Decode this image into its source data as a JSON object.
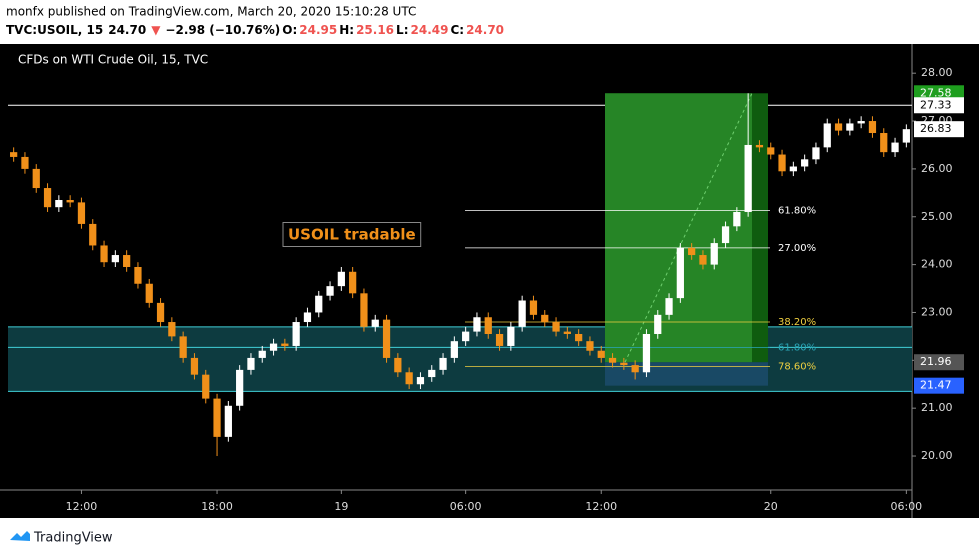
{
  "header": {
    "line1": "monfx published on TradingView.com, March 20, 2020 15:10:28 UTC",
    "line2": [
      {
        "text": "TVC:USOIL, 15",
        "color": "#000000"
      },
      {
        "text": "24.70",
        "color": "#000000"
      },
      {
        "text": "▼",
        "color": "#ef5350"
      },
      {
        "text": "−2.98 (−10.76%)",
        "color": "#000000"
      },
      {
        "text": "O:",
        "color": "#000000"
      },
      {
        "text": "24.95",
        "color": "#ef5350"
      },
      {
        "text": "H:",
        "color": "#000000"
      },
      {
        "text": "25.16",
        "color": "#ef5350"
      },
      {
        "text": "L:",
        "color": "#000000"
      },
      {
        "text": "24.49",
        "color": "#ef5350"
      },
      {
        "text": "C:",
        "color": "#000000"
      },
      {
        "text": "24.70",
        "color": "#ef5350"
      }
    ]
  },
  "footer": {
    "brand": "TradingView"
  },
  "chart_data": {
    "type": "candlestick",
    "title": "CFDs on WTI Crude Oil, 15, TVC",
    "annotation": "USOIL tradable",
    "up_color": "#ffffff",
    "down_color": "#f0901a",
    "categories": [
      null,
      null,
      null,
      null,
      null,
      null,
      "12:00",
      null,
      null,
      null,
      null,
      null,
      null,
      null,
      null,
      null,
      null,
      null,
      "18:00",
      null,
      null,
      null,
      null,
      null,
      null,
      null,
      null,
      null,
      null,
      "19",
      null,
      null,
      null,
      null,
      null,
      null,
      null,
      null,
      null,
      null,
      "06:00",
      null,
      null,
      null,
      null,
      null,
      null,
      null,
      null,
      null,
      null,
      null,
      "12:00",
      null,
      null,
      null,
      null,
      null,
      null,
      null,
      null,
      null,
      null,
      null,
      null,
      null,
      null,
      "20",
      null,
      null,
      null,
      null,
      null,
      null,
      null,
      null,
      null,
      null,
      null,
      "06:00"
    ],
    "open": [
      26.35,
      26.25,
      26.0,
      25.6,
      25.2,
      25.35,
      25.3,
      24.85,
      24.4,
      24.05,
      24.2,
      23.95,
      23.6,
      23.2,
      22.8,
      22.5,
      22.05,
      21.7,
      21.2,
      20.4,
      21.05,
      21.8,
      22.05,
      22.2,
      22.35,
      22.3,
      22.8,
      23.0,
      23.35,
      23.55,
      23.85,
      23.4,
      22.7,
      22.85,
      22.05,
      21.75,
      21.5,
      21.65,
      21.8,
      22.05,
      22.4,
      22.6,
      22.9,
      22.55,
      22.3,
      22.7,
      23.25,
      22.95,
      22.8,
      22.6,
      22.55,
      22.4,
      22.2,
      22.05,
      21.95,
      21.9,
      21.75,
      22.55,
      22.95,
      23.3,
      24.35,
      24.2,
      24.0,
      24.45,
      24.8,
      25.1,
      26.5,
      26.45,
      26.3,
      25.95,
      26.05,
      26.2,
      26.45,
      26.95,
      26.8,
      26.95,
      27.0,
      26.75,
      26.35,
      26.55
    ],
    "high": [
      26.45,
      26.35,
      26.1,
      25.7,
      25.45,
      25.45,
      25.4,
      24.95,
      24.5,
      24.3,
      24.3,
      24.05,
      23.7,
      23.3,
      22.9,
      22.6,
      22.15,
      21.8,
      21.3,
      21.15,
      21.9,
      22.15,
      22.3,
      22.45,
      22.45,
      22.9,
      23.1,
      23.45,
      23.65,
      23.95,
      23.95,
      23.5,
      22.95,
      22.95,
      22.15,
      21.85,
      21.75,
      21.9,
      22.15,
      22.5,
      22.7,
      23.0,
      23.0,
      22.65,
      22.8,
      23.35,
      23.35,
      23.05,
      22.9,
      22.7,
      22.65,
      22.5,
      22.3,
      22.15,
      22.05,
      22.0,
      22.65,
      23.05,
      23.4,
      24.45,
      24.45,
      24.3,
      24.55,
      24.9,
      25.2,
      27.58,
      26.6,
      26.55,
      26.4,
      26.15,
      26.3,
      26.55,
      27.05,
      27.05,
      27.05,
      27.1,
      27.1,
      26.85,
      26.65,
      26.93
    ],
    "low": [
      26.15,
      25.9,
      25.5,
      25.1,
      25.1,
      25.2,
      24.75,
      24.3,
      23.95,
      23.95,
      23.85,
      23.5,
      23.1,
      22.7,
      22.4,
      21.95,
      21.6,
      21.1,
      20.0,
      20.3,
      20.95,
      21.7,
      21.95,
      22.1,
      22.2,
      22.2,
      22.7,
      22.9,
      23.25,
      23.45,
      23.3,
      22.6,
      22.6,
      21.95,
      21.65,
      21.4,
      21.4,
      21.55,
      21.7,
      21.95,
      22.3,
      22.5,
      22.45,
      22.2,
      22.2,
      22.6,
      22.85,
      22.7,
      22.5,
      22.45,
      22.3,
      22.1,
      21.95,
      21.85,
      21.8,
      21.6,
      21.65,
      22.45,
      22.85,
      23.2,
      24.1,
      23.9,
      23.9,
      24.35,
      24.7,
      25.0,
      26.35,
      26.2,
      25.85,
      25.85,
      25.95,
      26.1,
      26.35,
      26.7,
      26.7,
      26.85,
      26.65,
      26.25,
      26.25,
      26.45
    ],
    "close": [
      26.25,
      26.0,
      25.6,
      25.2,
      25.35,
      25.3,
      24.85,
      24.4,
      24.05,
      24.2,
      23.95,
      23.6,
      23.2,
      22.8,
      22.5,
      22.05,
      21.7,
      21.2,
      20.4,
      21.05,
      21.8,
      22.05,
      22.2,
      22.35,
      22.3,
      22.8,
      23.0,
      23.35,
      23.55,
      23.85,
      23.4,
      22.7,
      22.85,
      22.05,
      21.75,
      21.5,
      21.65,
      21.8,
      22.05,
      22.4,
      22.6,
      22.9,
      22.55,
      22.3,
      22.7,
      23.25,
      22.95,
      22.8,
      22.6,
      22.55,
      22.4,
      22.2,
      22.05,
      21.95,
      21.9,
      21.75,
      22.55,
      22.95,
      23.3,
      24.35,
      24.2,
      24.0,
      24.45,
      24.8,
      25.1,
      26.5,
      26.45,
      26.3,
      25.95,
      26.05,
      26.2,
      26.45,
      26.95,
      26.8,
      26.95,
      27.0,
      26.75,
      26.35,
      26.55,
      26.83
    ],
    "ylim": [
      19.29,
      28.61
    ],
    "yticks": [
      {
        "value": 20,
        "label": "20.00"
      },
      {
        "value": 21,
        "label": "21.00"
      },
      {
        "value": 22,
        "label": "22.00"
      },
      {
        "value": 23,
        "label": "23.00"
      },
      {
        "value": 24,
        "label": "24.00"
      },
      {
        "value": 25,
        "label": "25.00"
      },
      {
        "value": 26,
        "label": "26.00"
      },
      {
        "value": 27,
        "label": "27.00"
      },
      {
        "value": 28,
        "label": "28.00"
      }
    ],
    "zone": {
      "top": 22.7,
      "mid": 22.27,
      "bottom": 21.35,
      "color": "#40d0d8"
    },
    "resistance": 27.33,
    "trade": {
      "target": 27.58,
      "entry": 21.96,
      "stop": 21.47
    },
    "fib_levels": [
      {
        "label": "61.80%",
        "value": 25.13,
        "color": "#ffffff"
      },
      {
        "label": "27.00%",
        "value": 24.35,
        "color": "#ffffff"
      },
      {
        "label": "38.20%",
        "value": 22.8,
        "color": "#f0d040"
      },
      {
        "label": "61.80%",
        "value": 22.27,
        "color": "#2aa7b8"
      },
      {
        "label": "78.60%",
        "value": 21.87,
        "color": "#f0d040"
      }
    ],
    "price_tags": [
      {
        "value": 27.58,
        "color": "#1e9e1e",
        "text_color": "#ffffff"
      },
      {
        "value": 27.33,
        "color": "#ffffff",
        "text_color": "#000000"
      },
      {
        "value": 26.83,
        "color": "#ffffff",
        "text_color": "#000000"
      },
      {
        "value": 21.96,
        "color": "#555555",
        "text_color": "#ffffff"
      },
      {
        "value": 21.47,
        "color": "#2962ff",
        "text_color": "#ffffff"
      }
    ]
  }
}
